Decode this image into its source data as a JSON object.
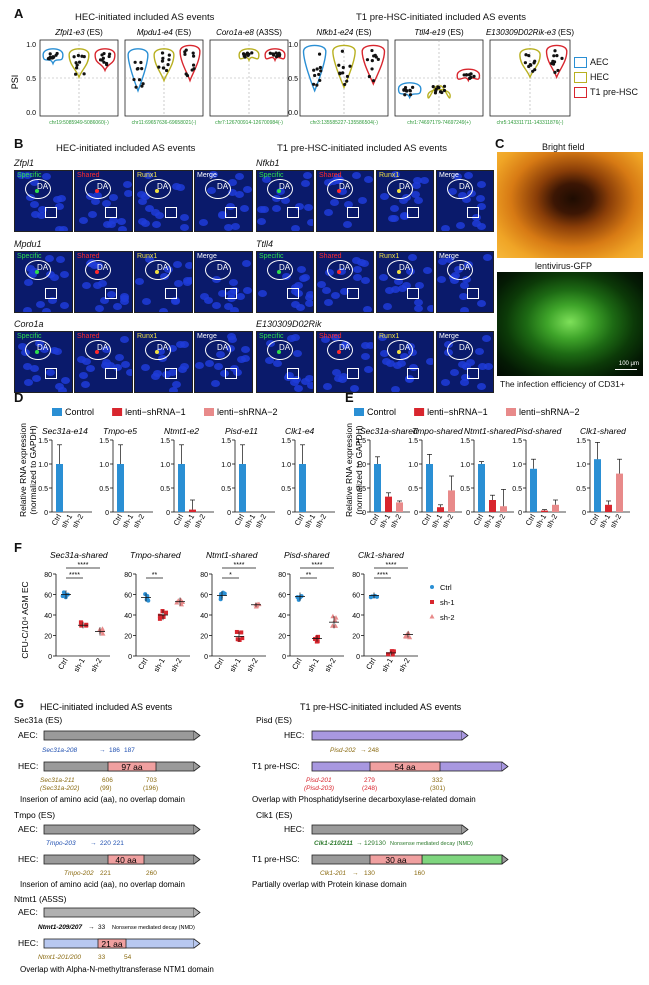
{
  "panels": {
    "A": "A",
    "B": "B",
    "C": "C",
    "D": "D",
    "E": "E",
    "F": "F",
    "G": "G"
  },
  "panel_A": {
    "left_title": "HEC-initiated included AS events",
    "right_title": "T1 pre-HSC-initiated included AS events",
    "ylabel": "PSI",
    "yticks": [
      "1.0",
      "0.5",
      "0.0"
    ],
    "plots": [
      {
        "gene": "Zfpl1-e3",
        "type": "(ES)",
        "coord": "chr19:5085949-5086060(-)"
      },
      {
        "gene": "Mpdu1-e4",
        "type": "(ES)",
        "coord": "chr11:69657636-69658021(-)"
      },
      {
        "gene": "Coro1a-e8",
        "type": "(A3SS)",
        "coord": "chr7:126700914-126700984(-)"
      },
      {
        "gene": "Nfkb1-e24",
        "type": "(ES)",
        "coord": "chr3:135585227-135586504(-)"
      },
      {
        "gene": "Ttll4-e19",
        "type": "(ES)",
        "coord": "chr1:74697179-74697249(+)"
      },
      {
        "gene": "E130309D02Rik-e3",
        "type": "(ES)",
        "coord": "chr5:143311711-143311876(-)"
      }
    ],
    "legend": [
      {
        "label": "AEC",
        "color": "#2a8fd4"
      },
      {
        "label": "HEC",
        "color": "#b8b020"
      },
      {
        "label": "T1 pre-HSC",
        "color": "#d8262e"
      }
    ]
  },
  "panel_B": {
    "left_title": "HEC-initiated included AS events",
    "right_title": "T1 pre-HSC-initiated included AS events",
    "channels": [
      "Specific",
      "Shared",
      "Runx1",
      "Merge"
    ],
    "da": "DA",
    "genes_left": [
      "Zfpl1",
      "Mpdu1",
      "Coro1a"
    ],
    "genes_right": [
      "Nfkb1",
      "Ttll4",
      "E130309D02Rik"
    ],
    "runx1_star": "Runx1⁺",
    "merge_star": "Merge⁺"
  },
  "panel_C": {
    "top_label": "Bright field",
    "mid_label": "lentivirus-GFP",
    "scale": "100 μm",
    "caption": "The infection efficiency of CD31+"
  },
  "panel_D": {
    "legend": [
      "Control",
      "lenti−shRNA−1",
      "lenti−shRNA−2"
    ],
    "colors": [
      "#2a8fd4",
      "#d8262e",
      "#e88a8a"
    ],
    "ylabel1": "Relative RNA expression",
    "ylabel2": "(normalized to GAPDH)",
    "genes": [
      "Sec31a-e14",
      "Tmpo-e5",
      "Ntmt1-e2",
      "Pisd-e11",
      "Clk1-e4"
    ],
    "xticks": [
      "Ctrl",
      "sh-1",
      "sh-2"
    ]
  },
  "panel_E": {
    "legend": [
      "Control",
      "lenti−shRNA−1",
      "lenti−shRNA−2"
    ],
    "ylabel1": "Relative RNA expression",
    "ylabel2": "(normalized to GAPDH)",
    "genes": [
      "Sec31a-shared",
      "Tmpo-shared",
      "Ntmt1-shared",
      "Pisd-shared",
      "Clk1-shared"
    ],
    "xticks": [
      "Ctrl",
      "sh-1",
      "sh-2"
    ]
  },
  "panel_F": {
    "ylabel": "CFU-C/10⁴ AGM EC",
    "genes": [
      "Sec31a-shared",
      "Tmpo-shared",
      "Ntmt1-shared",
      "Pisd-shared",
      "Clk1-shared"
    ],
    "xticks": [
      "Ctrl",
      "sh-1",
      "sh-2"
    ],
    "legend": [
      "Ctrl",
      "sh-1",
      "sh-2"
    ],
    "sig": [
      [
        "****",
        "****"
      ],
      [
        "**",
        ""
      ],
      [
        "*",
        "****"
      ],
      [
        "**",
        "****"
      ],
      [
        "****",
        "****"
      ]
    ]
  },
  "panel_G": {
    "left_title": "HEC-initiated included AS events",
    "right_title": "T1 pre-HSC-initiated included AS events",
    "sec31a": {
      "title": "Sec31a (ES)",
      "aec": "AEC:",
      "hec": "HEC:",
      "iso1": "Sec31a-208",
      "n1": "186",
      "n2": "187",
      "aa": "97 aa",
      "iso2": "Sec31a-211",
      "iso3": "(Sec31a-202)",
      "n3": "606",
      "n4": "(99)",
      "n5": "703",
      "n6": "(196)",
      "note": "Inserion of amino acid (aa), no overlap domain"
    },
    "tmpo": {
      "title": "Tmpo (ES)",
      "aec": "AEC:",
      "hec": "HEC:",
      "iso1": "Tmpo-203",
      "n1": "220",
      "n2": "221",
      "aa": "40 aa",
      "iso2": "Tmpo-202",
      "n3": "221",
      "n4": "260",
      "note": "Inserion of amino acid (aa), no overlap domain"
    },
    "ntmt1": {
      "title": "Ntmt1 (A5SS)",
      "aec": "AEC:",
      "hec": "HEC:",
      "iso1": "Ntmt1-209/207",
      "n1": "33",
      "nmd": "Nonsense mediated decay (NMD)",
      "aa": "21 aa",
      "iso2": "Ntmt1-201/200",
      "n2": "33",
      "n3": "54",
      "note": "Overlap with Alpha-N-methyltransferase NTM1 domain"
    },
    "pisd": {
      "title": "Pisd (ES)",
      "hec": "HEC:",
      "t1": "T1 pre-HSC:",
      "iso1": "Pisd-202",
      "n1": "248",
      "aa": "54 aa",
      "iso2": "Pisd-201",
      "iso3": "(Pisd-203)",
      "n2": "279",
      "n3": "(248)",
      "n4": "332",
      "n5": "(301)",
      "note": "Overlap with Phosphatidylserine decarboxylase-related domain"
    },
    "clk1": {
      "title": "Clk1 (ES)",
      "hec": "HEC:",
      "t1": "T1 pre-HSC:",
      "iso1": "Clk1-210/211",
      "n1": "129",
      "n2": "130",
      "nmd": "Nonsense mediated decay (NMD)",
      "aa": "30 aa",
      "iso2": "Clk1-201",
      "n3": "130",
      "n4": "160",
      "note": "Partially overlap with Protein kinase domain"
    }
  },
  "chart_data": [
    {
      "type": "bar",
      "panel": "D",
      "gene": "Sec31a-e14",
      "categories": [
        "Ctrl",
        "sh-1",
        "sh-2"
      ],
      "values": [
        1.0,
        0.0,
        0.0
      ],
      "ylim": [
        0,
        1.5
      ],
      "yticks": [
        0,
        0.5,
        1.0,
        1.5
      ]
    },
    {
      "type": "bar",
      "panel": "D",
      "gene": "Tmpo-e5",
      "categories": [
        "Ctrl",
        "sh-1",
        "sh-2"
      ],
      "values": [
        1.0,
        0.0,
        0.0
      ],
      "ylim": [
        0,
        1.5
      ],
      "yticks": [
        0,
        0.5,
        1.0,
        1.5
      ]
    },
    {
      "type": "bar",
      "panel": "D",
      "gene": "Ntmt1-e2",
      "categories": [
        "Ctrl",
        "sh-1",
        "sh-2"
      ],
      "values": [
        1.0,
        0.05,
        0.0
      ],
      "ylim": [
        0,
        1.5
      ],
      "yticks": [
        0,
        0.5,
        1.0,
        1.5
      ]
    },
    {
      "type": "bar",
      "panel": "D",
      "gene": "Pisd-e11",
      "categories": [
        "Ctrl",
        "sh-1",
        "sh-2"
      ],
      "values": [
        1.0,
        0.0,
        0.0
      ],
      "ylim": [
        0,
        1.5
      ],
      "yticks": [
        0,
        0.5,
        1.0,
        1.5
      ]
    },
    {
      "type": "bar",
      "panel": "D",
      "gene": "Clk1-e4",
      "categories": [
        "Ctrl",
        "sh-1",
        "sh-2"
      ],
      "values": [
        1.0,
        0.0,
        0.0
      ],
      "ylim": [
        0,
        1.5
      ],
      "yticks": [
        0,
        0.5,
        1.0,
        1.5
      ]
    },
    {
      "type": "bar",
      "panel": "E",
      "gene": "Sec31a-shared",
      "categories": [
        "Ctrl",
        "sh-1",
        "sh-2"
      ],
      "values": [
        1.0,
        0.32,
        0.2
      ],
      "ylim": [
        0,
        1.5
      ],
      "yticks": [
        0,
        0.5,
        1.0,
        1.5
      ]
    },
    {
      "type": "bar",
      "panel": "E",
      "gene": "Tmpo-shared",
      "categories": [
        "Ctrl",
        "sh-1",
        "sh-2"
      ],
      "values": [
        1.0,
        0.1,
        0.45
      ],
      "ylim": [
        0,
        1.5
      ],
      "yticks": [
        0,
        0.5,
        1.0,
        1.5
      ]
    },
    {
      "type": "bar",
      "panel": "E",
      "gene": "Ntmt1-shared",
      "categories": [
        "Ctrl",
        "sh-1",
        "sh-2"
      ],
      "values": [
        1.0,
        0.25,
        0.12
      ],
      "ylim": [
        0,
        1.5
      ],
      "yticks": [
        0,
        0.5,
        1.0,
        1.5
      ]
    },
    {
      "type": "bar",
      "panel": "E",
      "gene": "Pisd-shared",
      "categories": [
        "Ctrl",
        "sh-1",
        "sh-2"
      ],
      "values": [
        0.9,
        0.03,
        0.15
      ],
      "ylim": [
        0,
        1.5
      ],
      "yticks": [
        0,
        0.5,
        1.0,
        1.5
      ]
    },
    {
      "type": "bar",
      "panel": "E",
      "gene": "Clk1-shared",
      "categories": [
        "Ctrl",
        "sh-1",
        "sh-2"
      ],
      "values": [
        1.1,
        0.15,
        0.8
      ],
      "ylim": [
        0,
        1.5
      ],
      "yticks": [
        0,
        0.5,
        1.0,
        1.5
      ]
    },
    {
      "type": "scatter",
      "panel": "F",
      "gene": "Sec31a-shared",
      "categories": [
        "Ctrl",
        "sh-1",
        "sh-2"
      ],
      "means": [
        60,
        30,
        24
      ],
      "ylim": [
        0,
        80
      ],
      "yticks": [
        0,
        20,
        40,
        60,
        80
      ]
    },
    {
      "type": "scatter",
      "panel": "F",
      "gene": "Tmpo-shared",
      "categories": [
        "Ctrl",
        "sh-1",
        "sh-2"
      ],
      "means": [
        57,
        40,
        53
      ],
      "ylim": [
        0,
        80
      ],
      "yticks": [
        0,
        20,
        40,
        60,
        80
      ]
    },
    {
      "type": "scatter",
      "panel": "F",
      "gene": "Ntmt1-shared",
      "categories": [
        "Ctrl",
        "sh-1",
        "sh-2"
      ],
      "means": [
        59,
        19,
        50
      ],
      "ylim": [
        0,
        80
      ],
      "yticks": [
        0,
        20,
        40,
        60,
        80
      ]
    },
    {
      "type": "scatter",
      "panel": "F",
      "gene": "Pisd-shared",
      "categories": [
        "Ctrl",
        "sh-1",
        "sh-2"
      ],
      "means": [
        58,
        17,
        33
      ],
      "ylim": [
        0,
        80
      ],
      "yticks": [
        0,
        20,
        40,
        60,
        80
      ]
    },
    {
      "type": "scatter",
      "panel": "F",
      "gene": "Clk1-shared",
      "categories": [
        "Ctrl",
        "sh-1",
        "sh-2"
      ],
      "means": [
        59,
        3,
        21
      ],
      "ylim": [
        0,
        80
      ],
      "yticks": [
        0,
        20,
        40,
        60,
        80
      ]
    }
  ]
}
